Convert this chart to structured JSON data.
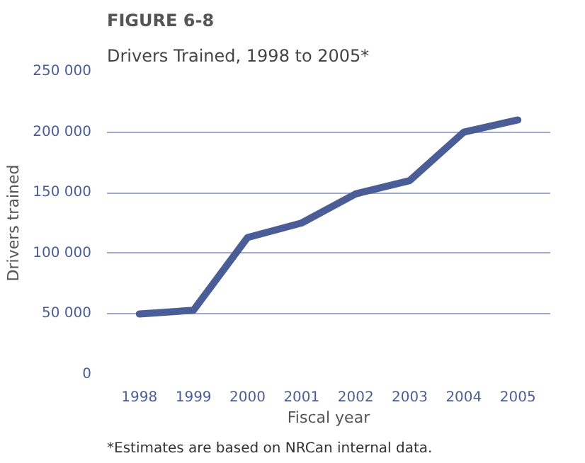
{
  "chart_data": {
    "type": "line",
    "title": "FIGURE 6-8",
    "subtitle": "Drivers Trained, 1998 to 2005*",
    "xlabel": "Fiscal year",
    "ylabel": "Drivers trained",
    "categories": [
      "1998",
      "1999",
      "2000",
      "2001",
      "2002",
      "2003",
      "2004",
      "2005"
    ],
    "series": [
      {
        "color": "#4b5d97",
        "values": [
          50000,
          53000,
          113000,
          125000,
          149000,
          160000,
          200000,
          210000
        ]
      }
    ],
    "ylim": [
      0,
      250000
    ],
    "yticks": [
      {
        "value": 0,
        "label": "0"
      },
      {
        "value": 50000,
        "label": "50 000"
      },
      {
        "value": 100000,
        "label": "100 000"
      },
      {
        "value": 150000,
        "label": "150 000"
      },
      {
        "value": 200000,
        "label": "200 000"
      },
      {
        "value": 250000,
        "label": "250 000"
      }
    ],
    "grid": "y",
    "line_style": "solid",
    "annotations": [
      "*Estimates are based on NRCan internal data."
    ]
  }
}
